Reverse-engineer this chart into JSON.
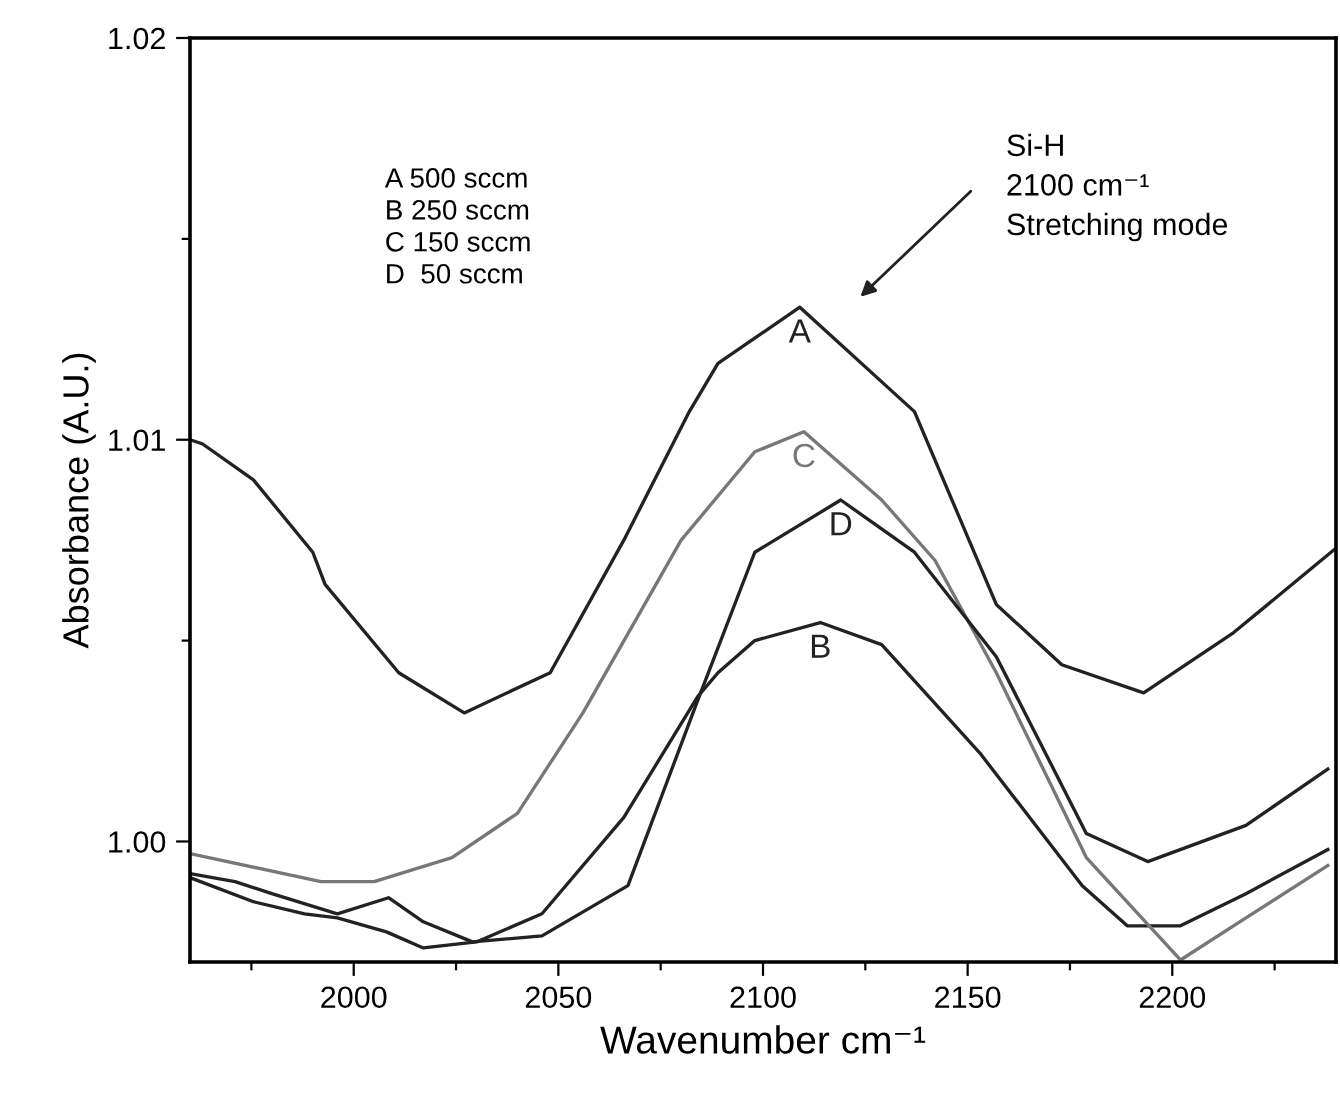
{
  "chart_data": {
    "type": "line",
    "xlabel": "Wavenumber cm⁻¹",
    "ylabel": "Absorbance (A.U.)",
    "xlim": [
      1960,
      2240
    ],
    "ylim": [
      0.997,
      1.02
    ],
    "xticks": [
      {
        "value": 1975,
        "label": null
      },
      2000,
      {
        "value": 2025,
        "label": null
      },
      2050,
      {
        "value": 2075,
        "label": null
      },
      2100,
      {
        "value": 2125,
        "label": null
      },
      2150,
      {
        "value": 2175,
        "label": null
      },
      2200,
      {
        "value": 2225,
        "label": null
      }
    ],
    "yticks": [
      {
        "value": 1.0,
        "label": "1.00"
      },
      {
        "value": 1.005,
        "label": null
      },
      {
        "value": 1.01,
        "label": "1.01"
      },
      {
        "value": 1.015,
        "label": null
      },
      {
        "value": 1.02,
        "label": "1.02"
      }
    ],
    "grid": false,
    "legend": false,
    "marker": "none",
    "line_style": "solid",
    "series": [
      {
        "name": "A",
        "color": "#222222",
        "x": [
          1960,
          1963,
          1975.5,
          1990,
          1993,
          2011,
          2027,
          2048,
          2066,
          2082,
          2089,
          2109,
          2137,
          2157,
          2173,
          2193,
          2215,
          2240
        ],
        "values": [
          1.01,
          1.0099,
          1.009,
          1.0072,
          1.0064,
          1.0042,
          1.0032,
          1.0042,
          1.0075,
          1.0107,
          1.0119,
          1.0133,
          1.0107,
          1.0059,
          1.0044,
          1.0037,
          1.0052,
          1.0073
        ]
      },
      {
        "name": "B",
        "color": "#222222",
        "x": [
          1960,
          1975.5,
          1988,
          1996,
          2008,
          2017,
          2030,
          2046,
          2066,
          2084,
          2089,
          2098,
          2114,
          2129,
          2153,
          2178,
          2189,
          2202,
          2218,
          2238
        ],
        "values": [
          0.9991,
          0.9985,
          0.9982,
          0.9981,
          0.99775,
          0.99735,
          0.9975,
          0.9982,
          1.0006,
          1.0036,
          1.0042,
          1.005,
          1.00545,
          1.0049,
          1.0022,
          0.9989,
          0.9979,
          0.9979,
          0.9987,
          0.9998
        ]
      },
      {
        "name": "C",
        "color": "#777777",
        "x": [
          1960,
          1992,
          2005,
          2024,
          2040,
          2056,
          2080,
          2098,
          2110,
          2129,
          2142,
          2157,
          2179,
          2202,
          2218,
          2238
        ],
        "values": [
          0.9997,
          0.999,
          0.999,
          0.9996,
          1.0007,
          1.0032,
          1.0075,
          1.0097,
          1.0102,
          1.0085,
          1.007,
          1.0042,
          0.9996,
          0.99705,
          0.9981,
          0.9994
        ]
      },
      {
        "name": "D",
        "color": "#222222",
        "x": [
          1960,
          1971,
          1980,
          1996,
          2008.5,
          2017,
          2029,
          2046,
          2067,
          2084,
          2098,
          2119,
          2137,
          2157,
          2179,
          2194,
          2218,
          2238
        ],
        "values": [
          0.9992,
          0.999,
          0.9987,
          0.9982,
          0.9986,
          0.998,
          0.9975,
          0.99765,
          0.9989,
          1.0035,
          1.0072,
          1.0085,
          1.0072,
          1.0046,
          1.0002,
          0.9995,
          1.0004,
          1.0018
        ]
      }
    ],
    "annotations": [
      "A 500 sccm\nB 250 sccm\nC 150 sccm\nD  50 sccm",
      "Si-H\n2100 cm⁻¹\nStretching mode"
    ]
  }
}
